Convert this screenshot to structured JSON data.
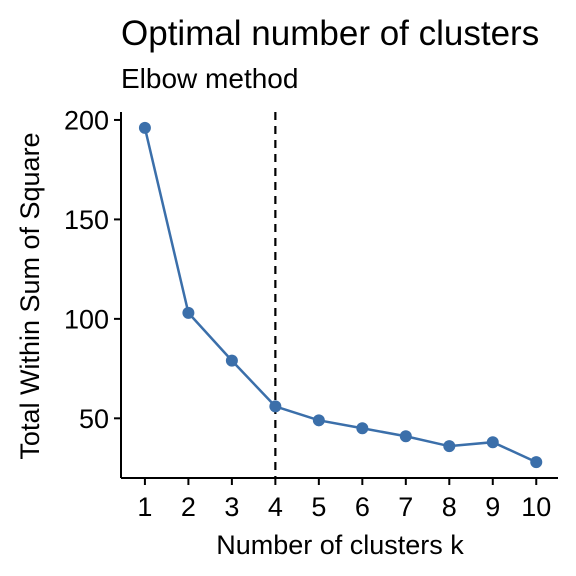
{
  "chart_data": {
    "type": "line",
    "title": "Optimal number of clusters",
    "subtitle": "Elbow method",
    "xlabel": "Number of clusters k",
    "ylabel": "Total Within Sum of Square",
    "x": [
      1,
      2,
      3,
      4,
      5,
      6,
      7,
      8,
      9,
      10
    ],
    "series": [
      {
        "values": [
          196,
          103,
          79,
          56,
          49,
          45,
          41,
          36,
          38,
          28
        ],
        "color": "#3b6faa"
      }
    ],
    "x_ticks": [
      "1",
      "2",
      "3",
      "4",
      "5",
      "6",
      "7",
      "8",
      "9",
      "10"
    ],
    "y_ticks": [
      50,
      100,
      150,
      200
    ],
    "y_tick_labels": [
      "50",
      "100",
      "150",
      "200"
    ],
    "xlim": [
      0.45,
      10.5
    ],
    "ylim": [
      20,
      204
    ],
    "reference_line": {
      "axis": "x",
      "value": 4,
      "style": "dashed",
      "color": "#000000"
    },
    "grid": false,
    "legend": "none"
  }
}
